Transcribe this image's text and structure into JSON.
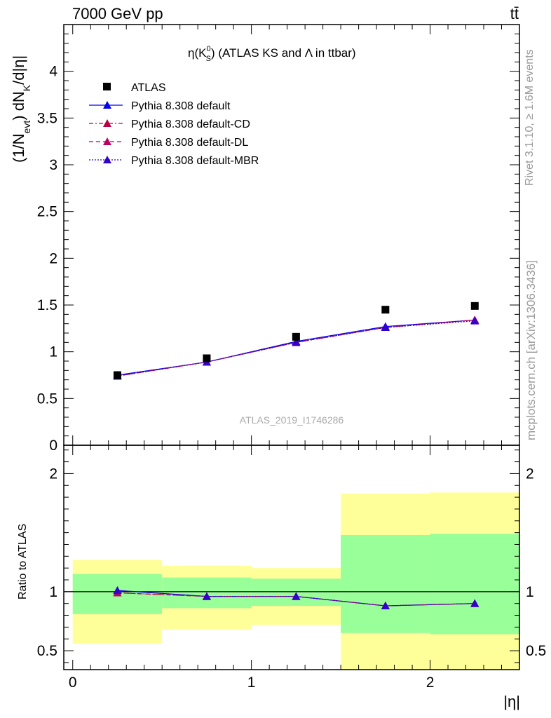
{
  "header": {
    "left": "7000 GeV pp",
    "right": "tt̄"
  },
  "side_text": {
    "rivet": "Rivet 3.1.10, ≥ 1.6M events",
    "mcplots": "mcplots.cern.ch [arXiv:1306.3436]"
  },
  "watermark": "ATLAS_2019_I1746286",
  "chart_data": [
    {
      "type": "line",
      "title": "η(K_S^0) (ATLAS KS and Λ in ttbar)",
      "title_parts": {
        "eta": "η(K",
        "sup": "0",
        "sub": "S",
        "rest": ") (ATLAS KS and Λ in ttbar)"
      },
      "ylabel": "(1/N_evt) dN_K/d|η|",
      "ylabel_parts": {
        "a": "(1/N",
        "sub1": "evt",
        "b": ") dN",
        "sub2": "K",
        "c": "/d|η|"
      },
      "xlim": [
        -0.05,
        2.5
      ],
      "ylim": [
        0,
        4.5
      ],
      "yticks": [
        0,
        0.5,
        1,
        1.5,
        2,
        2.5,
        3,
        3.5,
        4
      ],
      "ytick_labels": [
        "0",
        "0.5",
        "1",
        "1.5",
        "2",
        "2.5",
        "3",
        "3.5",
        "4"
      ],
      "legend_position": "top-left",
      "x": [
        0.25,
        0.75,
        1.25,
        1.75,
        2.25
      ],
      "data": {
        "name": "ATLAS",
        "values": [
          0.75,
          0.93,
          1.16,
          1.45,
          1.49
        ]
      },
      "series": [
        {
          "name": "Pythia 8.308 default",
          "values": [
            0.75,
            0.89,
            1.11,
            1.27,
            1.34
          ],
          "color": "#0000ee",
          "dash": ""
        },
        {
          "name": "Pythia 8.308 default-CD",
          "values": [
            0.74,
            0.89,
            1.1,
            1.26,
            1.34
          ],
          "color": "#bb0044",
          "dash": "6,3,2,3"
        },
        {
          "name": "Pythia 8.308 default-DL",
          "values": [
            0.74,
            0.89,
            1.1,
            1.26,
            1.34
          ],
          "color": "#bb0066",
          "dash": "6,4"
        },
        {
          "name": "Pythia 8.308 default-MBR",
          "values": [
            0.74,
            0.89,
            1.1,
            1.26,
            1.33
          ],
          "color": "#3300cc",
          "dash": "2,2"
        }
      ]
    },
    {
      "type": "line",
      "title": "",
      "xlabel": "|η|",
      "ylabel": "Ratio to ATLAS",
      "xlim": [
        -0.05,
        2.5
      ],
      "ylim": [
        0.34,
        2.24
      ],
      "yticks": [
        0.5,
        1,
        2
      ],
      "ytick_labels": [
        "0.5",
        "1",
        "2"
      ],
      "xticks": [
        0,
        1,
        2
      ],
      "xtick_labels": [
        "0",
        "1",
        "2"
      ],
      "bins": [
        {
          "lo": 0.0,
          "hi": 0.5,
          "stat": [
            0.81,
            1.15
          ],
          "total": [
            0.56,
            1.27
          ]
        },
        {
          "lo": 0.5,
          "hi": 1.0,
          "stat": [
            0.86,
            1.12
          ],
          "total": [
            0.68,
            1.22
          ]
        },
        {
          "lo": 1.0,
          "hi": 1.5,
          "stat": [
            0.88,
            1.11
          ],
          "total": [
            0.72,
            1.2
          ]
        },
        {
          "lo": 1.5,
          "hi": 2.0,
          "stat": [
            0.65,
            1.48
          ],
          "total": [
            0.34,
            1.83
          ]
        },
        {
          "lo": 2.0,
          "hi": 2.5,
          "stat": [
            0.64,
            1.49
          ],
          "total": [
            0.34,
            1.84
          ]
        }
      ],
      "stat_color": "#99ff99",
      "total_color": "#ffff99",
      "series": [
        {
          "name": "Pythia 8.308 default",
          "values": [
            1.01,
            0.96,
            0.96,
            0.88,
            0.9
          ],
          "color": "#0000ee"
        },
        {
          "name": "Pythia 8.308 default-CD",
          "values": [
            0.99,
            0.96,
            0.96,
            0.88,
            0.9
          ],
          "color": "#bb0044"
        },
        {
          "name": "Pythia 8.308 default-DL",
          "values": [
            0.99,
            0.96,
            0.96,
            0.88,
            0.9
          ],
          "color": "#bb0066"
        },
        {
          "name": "Pythia 8.308 default-MBR",
          "values": [
            1.01,
            0.96,
            0.96,
            0.88,
            0.9
          ],
          "color": "#3300cc"
        }
      ]
    }
  ]
}
